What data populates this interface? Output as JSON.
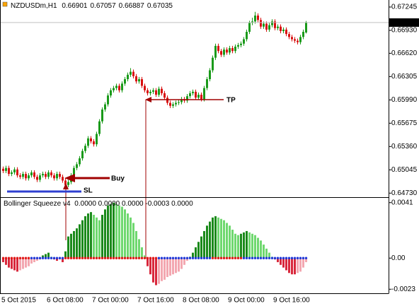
{
  "chart_data": [
    {
      "type": "candlestick",
      "title": "NZDUSDm,H1",
      "categories": [
        "5 Oct 2015",
        null,
        null,
        null,
        null,
        null,
        null,
        null,
        null,
        null,
        null,
        null,
        null,
        null,
        null,
        null,
        "6 Oct 08:00",
        null,
        null,
        null,
        null,
        null,
        null,
        null,
        null,
        null,
        null,
        null,
        null,
        null,
        null,
        null,
        "7 Oct 00:00",
        null,
        null,
        null,
        null,
        null,
        null,
        null,
        null,
        null,
        null,
        null,
        null,
        null,
        null,
        null,
        "7 Oct 16:00",
        null,
        null,
        null,
        null,
        null,
        null,
        null,
        null,
        null,
        null,
        null,
        null,
        null,
        null,
        null,
        "8 Oct 08:00",
        null,
        null,
        null,
        null,
        null,
        null,
        null,
        null,
        null,
        null,
        null,
        null,
        null,
        null,
        null,
        "9 Oct 00:00",
        null,
        null,
        null,
        null,
        null,
        null,
        null,
        null,
        null,
        null,
        null,
        null,
        null,
        null,
        null,
        "9 Oct 16:00",
        null,
        null,
        null,
        null,
        null,
        null,
        null,
        null,
        null,
        null,
        null
      ],
      "open": [
        0.6506,
        0.6503,
        0.6507,
        0.6499,
        0.6501,
        0.6505,
        0.6497,
        0.6495,
        0.6499,
        0.6493,
        0.6497,
        0.6501,
        0.6495,
        0.6491,
        0.6497,
        0.6499,
        0.6495,
        0.6501,
        0.6497,
        0.6493,
        0.6499,
        0.6495,
        0.649,
        0.6484,
        0.6488,
        0.6497,
        0.6507,
        0.6512,
        0.652,
        0.653,
        0.6537,
        0.6547,
        0.6543,
        0.6539,
        0.6553,
        0.657,
        0.6586,
        0.6593,
        0.6605,
        0.6612,
        0.6615,
        0.6618,
        0.6612,
        0.6621,
        0.6627,
        0.6633,
        0.6637,
        0.6631,
        0.6624,
        0.6627,
        0.6618,
        0.6612,
        0.6608,
        0.661,
        0.6612,
        0.6606,
        0.6614,
        0.6608,
        0.6602,
        0.6595,
        0.6591,
        0.6593,
        0.6595,
        0.6596,
        0.66,
        0.6598,
        0.6604,
        0.6608,
        0.661,
        0.6602,
        0.6606,
        0.66,
        0.6615,
        0.6627,
        0.6639,
        0.6656,
        0.6672,
        0.6665,
        0.666,
        0.6667,
        0.6663,
        0.6669,
        0.6665,
        0.6671,
        0.6673,
        0.6675,
        0.6681,
        0.6691,
        0.6703,
        0.6705,
        0.6713,
        0.6707,
        0.6698,
        0.6702,
        0.6694,
        0.67,
        0.6705,
        0.6696,
        0.6698,
        0.6692,
        0.6694,
        0.6688,
        0.6684,
        0.6681,
        0.6679,
        0.6677,
        0.6684,
        0.66901
      ],
      "high": [
        0.6509,
        0.651,
        0.651,
        0.6504,
        0.6508,
        0.6508,
        0.65,
        0.6502,
        0.6502,
        0.65,
        0.6504,
        0.6504,
        0.6498,
        0.65,
        0.6502,
        0.6502,
        0.6504,
        0.6504,
        0.65,
        0.6502,
        0.6502,
        0.6498,
        0.6493,
        0.6491,
        0.65,
        0.651,
        0.6515,
        0.6523,
        0.6533,
        0.654,
        0.655,
        0.655,
        0.6546,
        0.6556,
        0.6573,
        0.6589,
        0.6596,
        0.6608,
        0.6615,
        0.6618,
        0.6621,
        0.6621,
        0.6624,
        0.663,
        0.6636,
        0.6642,
        0.664,
        0.6634,
        0.663,
        0.663,
        0.6621,
        0.6615,
        0.6613,
        0.6615,
        0.6615,
        0.6617,
        0.6617,
        0.6611,
        0.6605,
        0.6598,
        0.6596,
        0.6598,
        0.6599,
        0.6603,
        0.6603,
        0.6607,
        0.6611,
        0.6613,
        0.6613,
        0.6609,
        0.6609,
        0.6618,
        0.663,
        0.6642,
        0.6659,
        0.6675,
        0.6675,
        0.6668,
        0.667,
        0.667,
        0.6672,
        0.6672,
        0.6674,
        0.6676,
        0.6678,
        0.6684,
        0.6694,
        0.6706,
        0.671,
        0.6718,
        0.6716,
        0.671,
        0.6705,
        0.6705,
        0.6703,
        0.6708,
        0.6708,
        0.6701,
        0.6701,
        0.6697,
        0.6697,
        0.6691,
        0.6687,
        0.6684,
        0.6682,
        0.6687,
        0.6694,
        0.67057
      ],
      "low": [
        0.65,
        0.65,
        0.6496,
        0.6496,
        0.6498,
        0.6494,
        0.6492,
        0.6492,
        0.649,
        0.649,
        0.6494,
        0.6492,
        0.6488,
        0.6488,
        0.6494,
        0.6492,
        0.6492,
        0.6494,
        0.649,
        0.649,
        0.6492,
        0.6487,
        0.648,
        0.6481,
        0.6485,
        0.6494,
        0.6504,
        0.6509,
        0.6517,
        0.6527,
        0.6534,
        0.654,
        0.6536,
        0.6536,
        0.655,
        0.6567,
        0.6583,
        0.659,
        0.6602,
        0.6609,
        0.6612,
        0.6609,
        0.6609,
        0.6618,
        0.6624,
        0.663,
        0.6628,
        0.6621,
        0.6621,
        0.6615,
        0.6609,
        0.6605,
        0.6605,
        0.6607,
        0.6603,
        0.6603,
        0.6605,
        0.6599,
        0.6592,
        0.6588,
        0.6588,
        0.659,
        0.6592,
        0.6593,
        0.6595,
        0.6595,
        0.6601,
        0.6605,
        0.6599,
        0.6599,
        0.6597,
        0.6597,
        0.6612,
        0.6624,
        0.6636,
        0.6653,
        0.6662,
        0.6657,
        0.6657,
        0.666,
        0.666,
        0.6662,
        0.6662,
        0.6668,
        0.667,
        0.6672,
        0.6678,
        0.6688,
        0.67,
        0.6702,
        0.6704,
        0.6695,
        0.6695,
        0.6691,
        0.6691,
        0.6697,
        0.6693,
        0.6693,
        0.6689,
        0.6689,
        0.6685,
        0.6681,
        0.6678,
        0.6676,
        0.6674,
        0.6674,
        0.6681,
        0.66887
      ],
      "close": [
        0.6503,
        0.6507,
        0.6499,
        0.6501,
        0.6505,
        0.6497,
        0.6495,
        0.6499,
        0.6493,
        0.6497,
        0.6501,
        0.6495,
        0.6491,
        0.6497,
        0.6499,
        0.6495,
        0.6501,
        0.6497,
        0.6493,
        0.6499,
        0.6495,
        0.649,
        0.6484,
        0.6488,
        0.6497,
        0.6507,
        0.6512,
        0.652,
        0.653,
        0.6537,
        0.6547,
        0.6543,
        0.6539,
        0.6553,
        0.657,
        0.6586,
        0.6593,
        0.6605,
        0.6612,
        0.6615,
        0.6618,
        0.6612,
        0.6621,
        0.6627,
        0.6633,
        0.6637,
        0.6631,
        0.6624,
        0.6627,
        0.6618,
        0.6612,
        0.6608,
        0.661,
        0.6612,
        0.6606,
        0.6614,
        0.6608,
        0.6602,
        0.6595,
        0.6591,
        0.6593,
        0.6595,
        0.6596,
        0.66,
        0.6598,
        0.6604,
        0.6608,
        0.661,
        0.6602,
        0.6606,
        0.66,
        0.6615,
        0.6627,
        0.6639,
        0.6656,
        0.6672,
        0.6665,
        0.666,
        0.6667,
        0.6663,
        0.6669,
        0.6665,
        0.6671,
        0.6673,
        0.6675,
        0.6681,
        0.6691,
        0.6703,
        0.6705,
        0.6713,
        0.6707,
        0.6698,
        0.6702,
        0.6694,
        0.67,
        0.6705,
        0.6696,
        0.6698,
        0.6692,
        0.6694,
        0.6688,
        0.6684,
        0.6681,
        0.6679,
        0.6677,
        0.6684,
        0.6691,
        0.67035
      ],
      "up_color": "#1a9a1a",
      "down_color": "#d81010",
      "price_line_color": "#c0c0c0",
      "ylim": [
        0.64685,
        0.6734
      ],
      "yticks": [
        0.67245,
        {
          "value": 0.6693,
          "label": "0.66930"
        },
        {
          "value": 0.6662,
          "label": "0.66620"
        },
        0.66305,
        {
          "value": 0.6599,
          "label": "0.65990"
        },
        0.65675,
        {
          "value": 0.6536,
          "label": "0.65360"
        },
        0.65045,
        {
          "value": 0.6473,
          "label": "0.64730"
        }
      ],
      "annotations": [
        "Buy",
        "TP",
        "SL"
      ]
    },
    {
      "type": "bar",
      "title": "Bollinger Squeeze v4",
      "readout": "0.0000 0.0000 0.0000 -0.0003 0.0000",
      "values": [
        -0.0003,
        -0.0005,
        -0.0007,
        -0.0008,
        -0.0009,
        -0.001,
        -0.0009,
        -0.0008,
        -0.0007,
        -0.0006,
        -0.0004,
        -0.0003,
        -0.0002,
        -0.0001,
        0.0002,
        0.0003,
        0.0004,
        0.0001,
        -0.0001,
        -0.0002,
        -0.0001,
        -0.0003,
        0.0005,
        0.0016,
        0.0018,
        0.002,
        0.0022,
        0.0025,
        0.0028,
        0.0031,
        0.0033,
        0.0034,
        0.0032,
        0.003,
        0.0028,
        0.0032,
        0.0036,
        0.0039,
        0.004,
        0.0041,
        0.004,
        0.0039,
        0.0038,
        0.0036,
        0.0033,
        0.003,
        0.0026,
        0.002,
        0.0014,
        0.0008,
        0.0002,
        -0.0006,
        -0.0012,
        -0.0018,
        -0.002,
        -0.0019,
        -0.0017,
        -0.0016,
        -0.0014,
        -0.0013,
        -0.0012,
        -0.0011,
        -0.001,
        -0.0008,
        -0.0005,
        -0.0002,
        0.0001,
        0.0004,
        0.0008,
        0.0012,
        0.0016,
        0.002,
        0.0024,
        0.0027,
        0.003,
        0.0031,
        0.003,
        0.0029,
        0.0028,
        0.0026,
        0.0024,
        0.0021,
        0.0018,
        0.0017,
        0.0018,
        0.0019,
        0.002,
        0.0019,
        0.0018,
        0.0017,
        0.0015,
        0.0013,
        0.001,
        0.0007,
        0.0004,
        0.0001,
        -0.0001,
        -0.0003,
        -0.0005,
        -0.0007,
        -0.0009,
        -0.0011,
        -0.0012,
        -0.0012,
        -0.0011,
        -0.001,
        -0.0007,
        -0.0003
      ],
      "squeeze": [
        false,
        false,
        false,
        false,
        false,
        false,
        false,
        false,
        false,
        false,
        true,
        true,
        true,
        true,
        true,
        true,
        true,
        true,
        true,
        true,
        true,
        true,
        false,
        false,
        false,
        false,
        false,
        false,
        false,
        false,
        false,
        false,
        false,
        false,
        false,
        false,
        false,
        false,
        false,
        false,
        false,
        false,
        false,
        false,
        false,
        false,
        false,
        false,
        false,
        false,
        false,
        false,
        false,
        false,
        false,
        true,
        true,
        true,
        true,
        true,
        true,
        true,
        true,
        true,
        true,
        true,
        true,
        true,
        true,
        true,
        true,
        true,
        true,
        true,
        false,
        false,
        false,
        false,
        false,
        false,
        false,
        false,
        false,
        false,
        false,
        true,
        true,
        true,
        true,
        true,
        true,
        true,
        true,
        true,
        true,
        true,
        true,
        true,
        true,
        true,
        true,
        true,
        true,
        true,
        true,
        true,
        true,
        true
      ],
      "colors": {
        "up_rising": "#1b8a1b",
        "up_falling": "#6fd86f",
        "down_falling": "#d8283c",
        "down_rising": "#f3a7b0",
        "squeeze_on": "#2038d8",
        "squeeze_off": "#e01818"
      },
      "ylim": [
        -0.0026,
        0.0044
      ],
      "yticks": [
        0.0041,
        {
          "value": 0,
          "label": "0.00"
        },
        -0.0023
      ]
    }
  ]
}
